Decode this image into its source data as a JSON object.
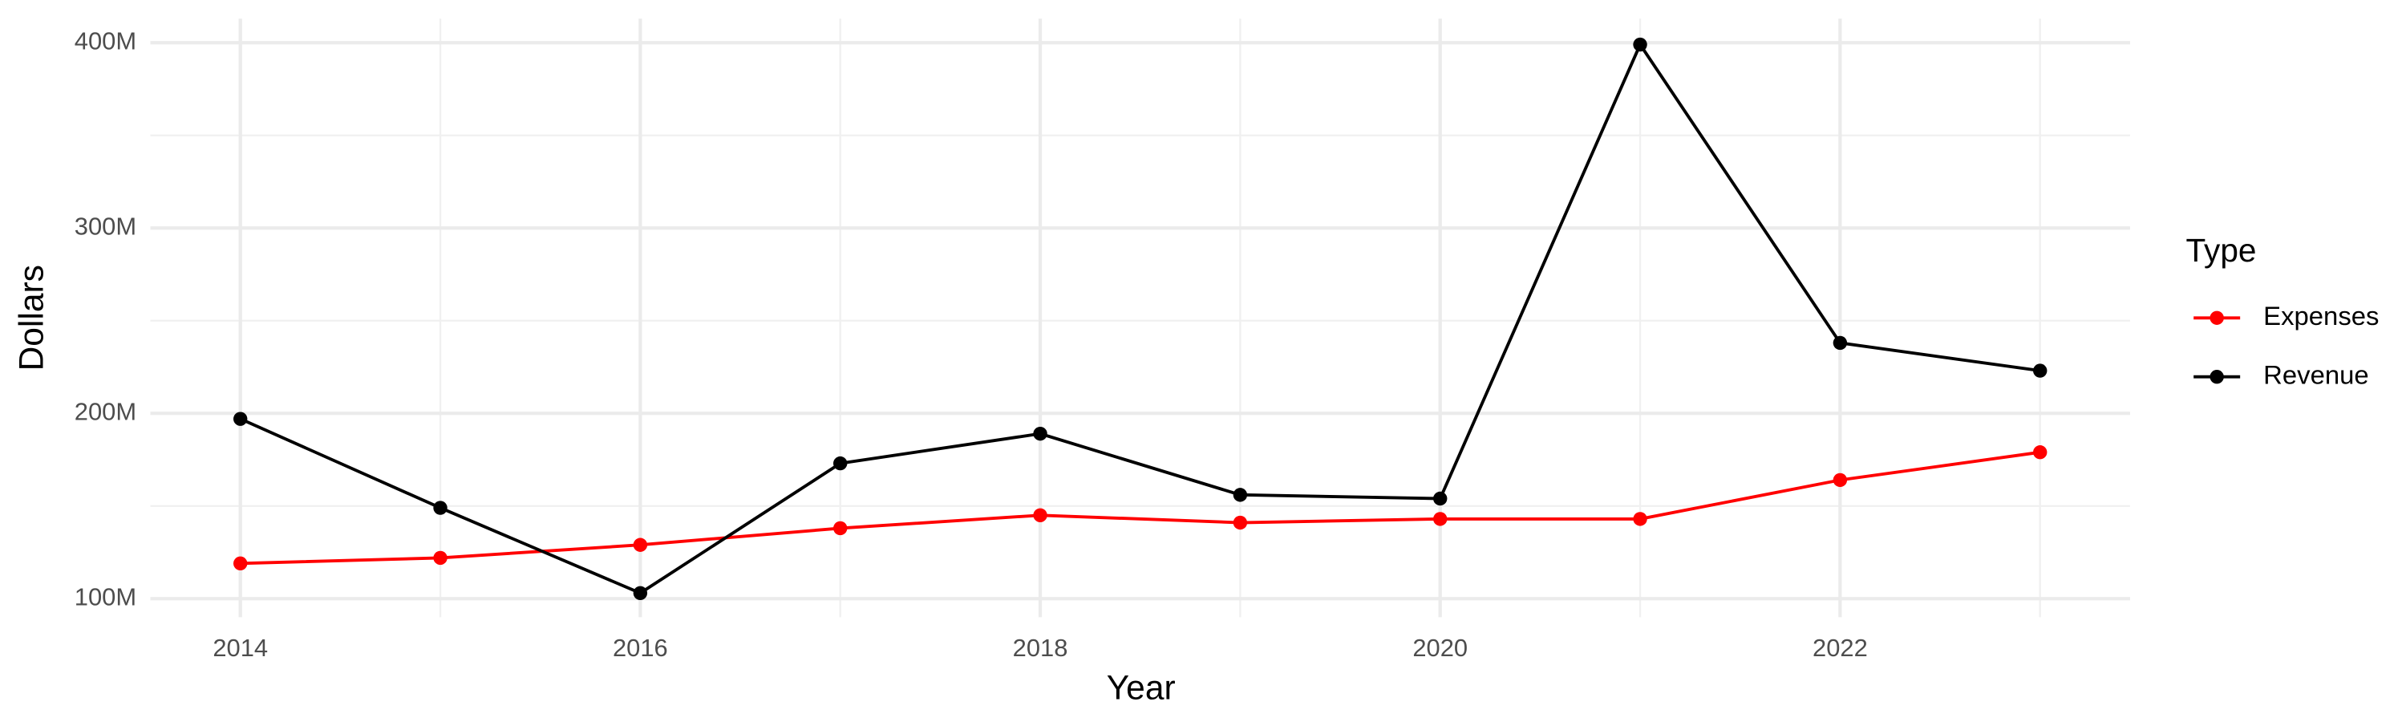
{
  "chart_data": {
    "type": "line",
    "x_label": "Year",
    "y_label": "Dollars",
    "legend_title": "Type",
    "x": [
      2014,
      2015,
      2016,
      2017,
      2018,
      2019,
      2020,
      2021,
      2022,
      2023
    ],
    "series": [
      {
        "name": "Expenses",
        "color": "#ff0000",
        "values": [
          119000000,
          122000000,
          129000000,
          138000000,
          145000000,
          141000000,
          143000000,
          143000000,
          164000000,
          179000000
        ]
      },
      {
        "name": "Revenue",
        "color": "#000000",
        "values": [
          197000000,
          149000000,
          103000000,
          173000000,
          189000000,
          156000000,
          154000000,
          399000000,
          238000000,
          223000000
        ]
      }
    ],
    "xlim": [
      2013.55,
      2023.45
    ],
    "xticks": [
      2014,
      2016,
      2018,
      2020,
      2022
    ],
    "x_minor_ticks": [
      2015,
      2017,
      2019,
      2021,
      2023
    ],
    "ylim": [
      90000000,
      413000000
    ],
    "yticks": [
      {
        "value": 100000000,
        "label": "100M"
      },
      {
        "value": 200000000,
        "label": "200M"
      },
      {
        "value": 300000000,
        "label": "300M"
      },
      {
        "value": 400000000,
        "label": "400M"
      }
    ],
    "y_minor_ticks": [
      150000000,
      250000000,
      350000000
    ],
    "grid": true,
    "legend_position": "right"
  }
}
